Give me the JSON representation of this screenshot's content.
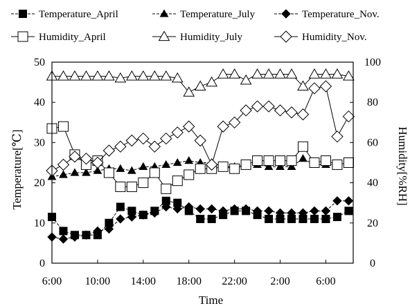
{
  "chart_data": {
    "type": "line",
    "xlabel": "Time",
    "ylabel_left": "Temperature[℃]",
    "ylabel_right": "Humidity[%RH]",
    "ylim_left": [
      0,
      50
    ],
    "ylim_right": [
      0,
      100
    ],
    "yticks_left": [
      "0",
      "10",
      "20",
      "30",
      "40",
      "50"
    ],
    "yticks_right": [
      "0",
      "20",
      "40",
      "60",
      "80",
      "100"
    ],
    "x_ticks": [
      "6:00",
      "10:00",
      "14:00",
      "18:00",
      "22:00",
      "2:00",
      "6:00"
    ],
    "x_hours": [
      6,
      7,
      8,
      9,
      10,
      11,
      12,
      13,
      14,
      15,
      16,
      17,
      18,
      19,
      20,
      21,
      22,
      23,
      24,
      25,
      26,
      27,
      28,
      29,
      30,
      31,
      32
    ],
    "grid": false,
    "legend_position": "top",
    "series": [
      {
        "name": "Temperature_April",
        "axis": "left",
        "marker": "filled-square",
        "dash": true,
        "values": [
          11.5,
          8,
          7,
          7,
          7,
          10,
          14,
          13,
          12,
          13,
          15.5,
          15,
          13,
          11,
          11,
          12,
          13,
          13,
          12,
          11,
          11,
          11,
          11,
          11,
          11,
          11.5,
          13
        ]
      },
      {
        "name": "Temperature_July",
        "axis": "left",
        "marker": "filled-triangle",
        "dash": true,
        "values": [
          21.5,
          22,
          22.5,
          22.5,
          23,
          23.5,
          23.5,
          23,
          24,
          24,
          24.5,
          25,
          25.5,
          25,
          25,
          24,
          24,
          24.5,
          24.5,
          24,
          24,
          24,
          26,
          24.5,
          24.5,
          24.5,
          25
        ]
      },
      {
        "name": "Temperature_Nov.",
        "axis": "left",
        "marker": "filled-diamond",
        "dash": true,
        "values": [
          6.5,
          6,
          6.5,
          7,
          8,
          8.5,
          11,
          11.5,
          12,
          12.5,
          14,
          13.5,
          14,
          13.5,
          13.5,
          13,
          13.5,
          13.5,
          13,
          13,
          12.5,
          12.5,
          12.5,
          13,
          13,
          15.5,
          15.5
        ]
      },
      {
        "name": "Humidity_April",
        "axis": "right",
        "marker": "open-square",
        "dash": false,
        "values": [
          67,
          68,
          54,
          49,
          51,
          45,
          38,
          38,
          40,
          45,
          37,
          41,
          44,
          47,
          47,
          48,
          47,
          49,
          51,
          51,
          51,
          51,
          58,
          50,
          51,
          49,
          50
        ]
      },
      {
        "name": "Humidity_July",
        "axis": "right",
        "marker": "open-triangle",
        "dash": false,
        "values": [
          93,
          93,
          93,
          93,
          93,
          93,
          92,
          93,
          93,
          93,
          93,
          92,
          85,
          88,
          90,
          94,
          94,
          91,
          94,
          94,
          94,
          94,
          88,
          94,
          94,
          94,
          93
        ]
      },
      {
        "name": "Humidity_Nov.",
        "axis": "right",
        "marker": "open-diamond",
        "dash": false,
        "values": [
          46,
          49,
          53,
          52,
          50,
          56,
          58,
          61,
          62,
          58,
          62,
          65,
          68,
          61,
          49,
          68,
          70,
          76,
          78,
          78,
          76,
          75,
          74,
          87,
          88,
          63,
          73
        ]
      }
    ]
  }
}
